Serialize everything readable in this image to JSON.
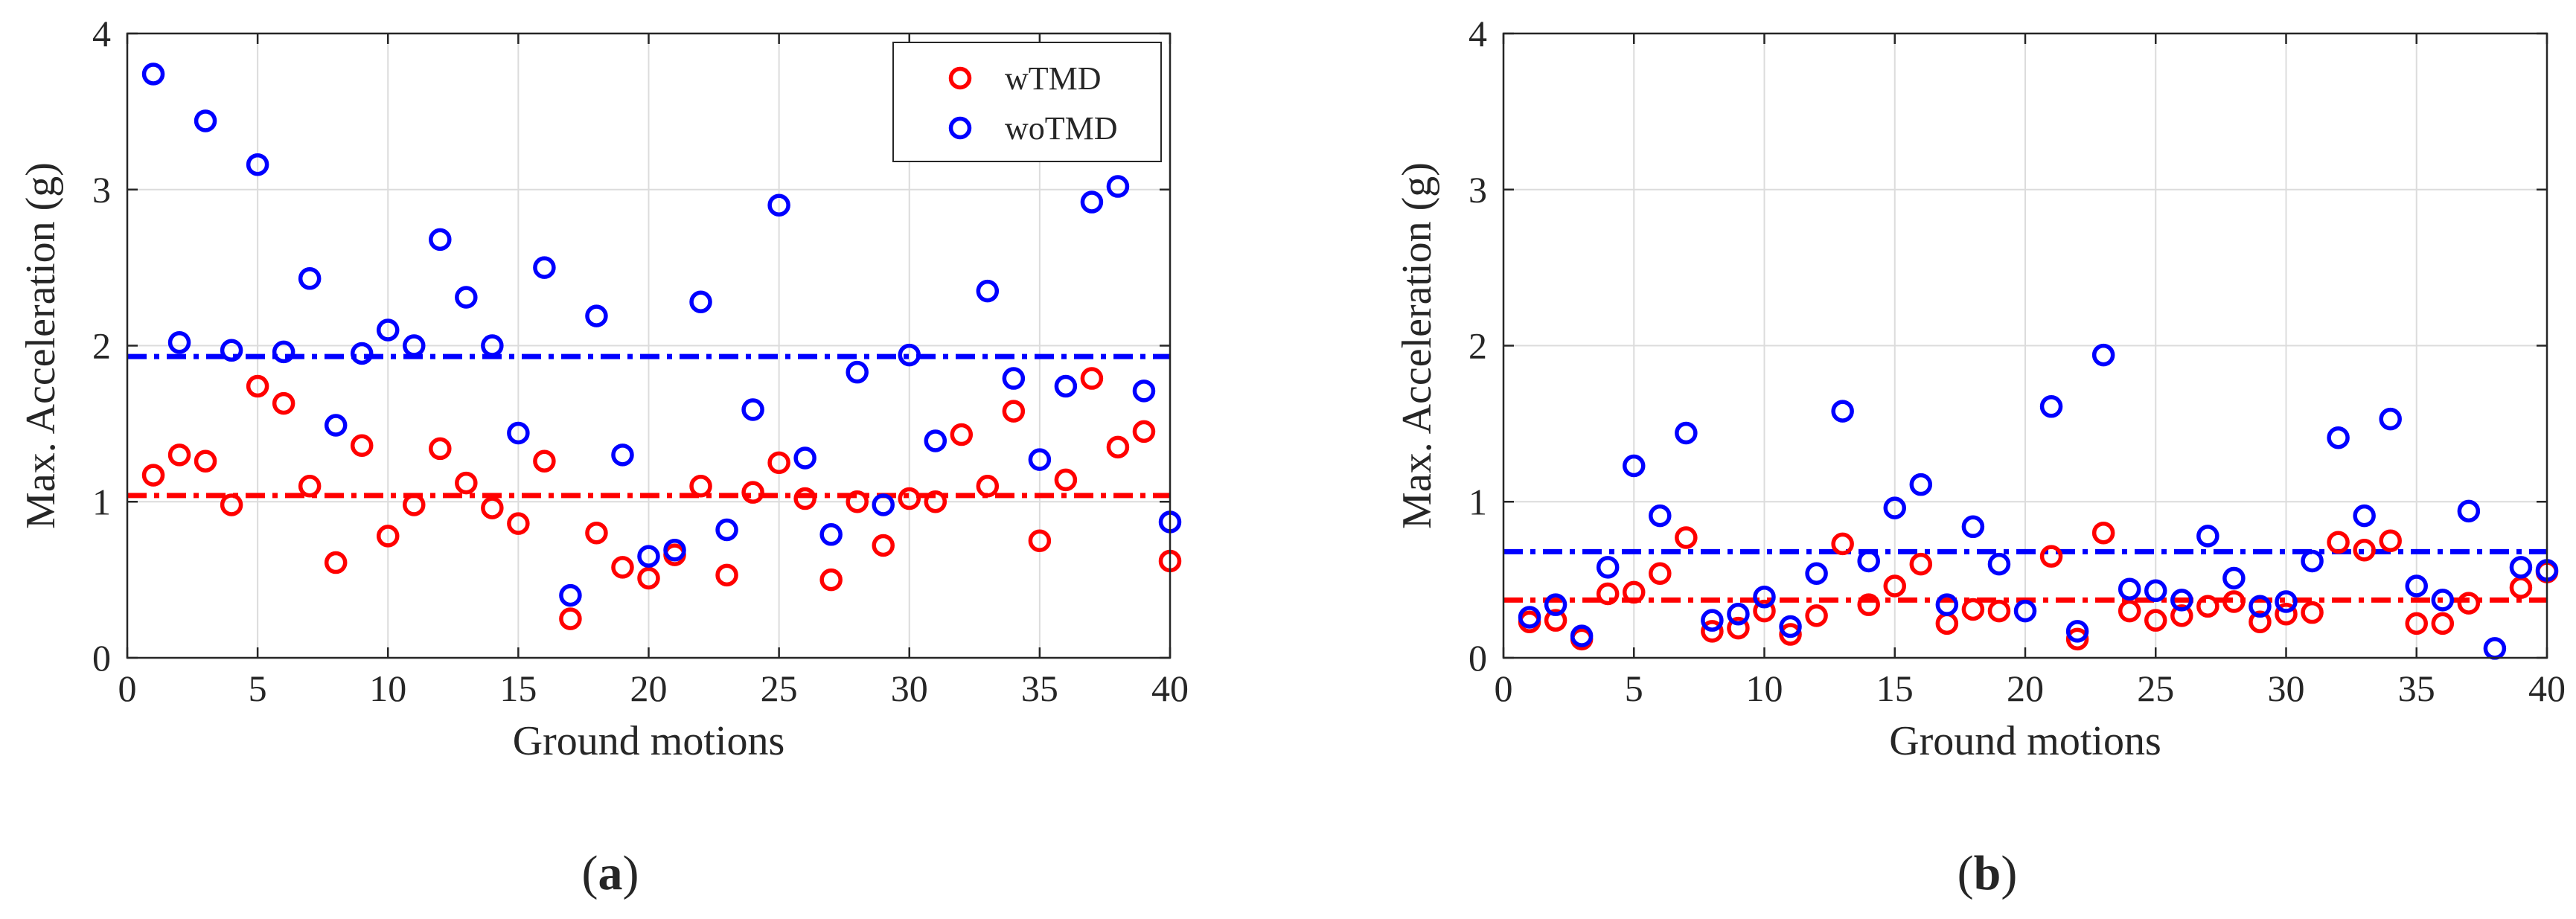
{
  "chart_data": [
    {
      "type": "scatter",
      "panel_label": "a",
      "xlabel": "Ground motions",
      "ylabel": "Max. Acceleration (g)",
      "xlim": [
        0,
        40
      ],
      "ylim": [
        0,
        4
      ],
      "xticks": [
        0,
        5,
        10,
        15,
        20,
        25,
        30,
        35,
        40
      ],
      "yticks": [
        0,
        1,
        2,
        3,
        4
      ],
      "grid": true,
      "legend": {
        "position": "top-right",
        "entries": [
          "wTMD",
          "woTMD"
        ]
      },
      "series": [
        {
          "name": "wTMD",
          "color": "#ff0000",
          "marker": "circle-open",
          "mean": 1.04,
          "x": [
            1,
            2,
            3,
            4,
            5,
            6,
            7,
            8,
            9,
            10,
            11,
            12,
            13,
            14,
            15,
            16,
            17,
            18,
            19,
            20,
            21,
            22,
            23,
            24,
            25,
            26,
            27,
            28,
            29,
            30,
            31,
            32,
            33,
            34,
            35,
            36,
            37,
            38,
            39,
            40
          ],
          "y": [
            1.17,
            1.3,
            1.26,
            0.98,
            1.74,
            1.63,
            1.1,
            0.61,
            1.36,
            0.78,
            0.98,
            1.34,
            1.12,
            0.96,
            0.86,
            1.26,
            0.25,
            0.8,
            0.58,
            0.51,
            0.66,
            1.1,
            0.53,
            1.06,
            1.25,
            1.02,
            0.5,
            1.0,
            0.72,
            1.02,
            1.0,
            1.43,
            1.1,
            1.58,
            0.75,
            1.14,
            1.79,
            1.35,
            1.45,
            0.62
          ]
        },
        {
          "name": "woTMD",
          "color": "#0000ff",
          "marker": "circle-open",
          "mean": 1.93,
          "x": [
            1,
            2,
            3,
            4,
            5,
            6,
            7,
            8,
            9,
            10,
            11,
            12,
            13,
            14,
            15,
            16,
            17,
            18,
            19,
            20,
            21,
            22,
            23,
            24,
            25,
            26,
            27,
            28,
            29,
            30,
            31,
            32,
            33,
            34,
            35,
            36,
            37,
            38,
            39,
            40
          ],
          "y": [
            3.74,
            2.02,
            3.44,
            1.97,
            3.16,
            1.96,
            2.43,
            1.49,
            1.95,
            2.1,
            2.0,
            2.68,
            2.31,
            2.0,
            1.44,
            2.5,
            0.4,
            2.19,
            1.3,
            0.65,
            0.69,
            2.28,
            0.82,
            1.59,
            2.9,
            1.28,
            0.79,
            1.83,
            0.98,
            1.94,
            1.39,
            null,
            2.35,
            1.79,
            1.27,
            1.74,
            2.92,
            3.02,
            1.71,
            0.87
          ]
        }
      ]
    },
    {
      "type": "scatter",
      "panel_label": "b",
      "xlabel": "Ground motions",
      "ylabel": "Max. Acceleration (g)",
      "xlim": [
        0,
        40
      ],
      "ylim": [
        0,
        4
      ],
      "xticks": [
        0,
        5,
        10,
        15,
        20,
        25,
        30,
        35,
        40
      ],
      "yticks": [
        0,
        1,
        2,
        3,
        4
      ],
      "grid": true,
      "series": [
        {
          "name": "wTMD",
          "color": "#ff0000",
          "marker": "circle-open",
          "mean": 0.37,
          "x": [
            1,
            2,
            3,
            4,
            5,
            6,
            7,
            8,
            9,
            10,
            11,
            12,
            13,
            14,
            15,
            16,
            17,
            18,
            19,
            20,
            21,
            22,
            23,
            24,
            25,
            26,
            27,
            28,
            29,
            30,
            31,
            32,
            33,
            34,
            35,
            36,
            37,
            38,
            39,
            40
          ],
          "y": [
            0.23,
            0.24,
            0.12,
            0.41,
            0.42,
            0.54,
            0.77,
            0.17,
            0.19,
            0.3,
            0.15,
            0.27,
            0.73,
            0.34,
            0.46,
            0.6,
            0.22,
            0.31,
            0.3,
            null,
            0.65,
            0.12,
            0.8,
            0.3,
            0.24,
            0.27,
            0.33,
            0.36,
            0.23,
            0.28,
            0.29,
            0.74,
            0.69,
            0.75,
            0.22,
            0.22,
            0.35,
            null,
            0.45,
            0.55
          ]
        },
        {
          "name": "woTMD",
          "color": "#0000ff",
          "marker": "circle-open",
          "mean": 0.68,
          "x": [
            1,
            2,
            3,
            4,
            5,
            6,
            7,
            8,
            9,
            10,
            11,
            12,
            13,
            14,
            15,
            16,
            17,
            18,
            19,
            20,
            21,
            22,
            23,
            24,
            25,
            26,
            27,
            28,
            29,
            30,
            31,
            32,
            33,
            34,
            35,
            36,
            37,
            38,
            39,
            40
          ],
          "y": [
            0.26,
            0.34,
            0.14,
            0.58,
            1.23,
            0.91,
            1.44,
            0.24,
            0.28,
            0.39,
            0.2,
            0.54,
            1.58,
            0.62,
            0.96,
            1.11,
            0.34,
            0.84,
            0.6,
            0.3,
            1.61,
            0.17,
            1.94,
            0.44,
            0.43,
            0.37,
            0.78,
            0.51,
            0.33,
            0.36,
            0.62,
            1.41,
            0.91,
            1.53,
            0.46,
            0.37,
            0.94,
            0.06,
            0.58,
            0.56
          ]
        }
      ]
    }
  ]
}
